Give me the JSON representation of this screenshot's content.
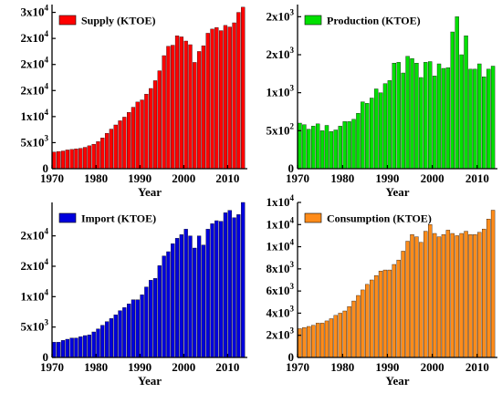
{
  "colors": {
    "supply": "#ff0000",
    "production": "#00e000",
    "import": "#0000dd",
    "consumption": "#ff8c1a"
  },
  "chart_data": [
    {
      "type": "bar",
      "id": "supply",
      "xlabel": "Year",
      "ylabel": "",
      "legend": "Supply (KTOE)",
      "legend_position": "top-left",
      "x": [
        1971,
        1972,
        1973,
        1974,
        1975,
        1976,
        1977,
        1978,
        1979,
        1980,
        1981,
        1982,
        1983,
        1984,
        1985,
        1986,
        1987,
        1988,
        1989,
        1990,
        1991,
        1992,
        1993,
        1994,
        1995,
        1996,
        1997,
        1998,
        1999,
        2000,
        2001,
        2002,
        2003,
        2004,
        2005,
        2006,
        2007,
        2008,
        2009,
        2010,
        2011,
        2012,
        2013,
        2014
      ],
      "values": [
        3200,
        3300,
        3400,
        3600,
        3700,
        3800,
        3900,
        4100,
        4400,
        4700,
        5200,
        5900,
        6800,
        7600,
        8400,
        9200,
        9900,
        10800,
        11800,
        12800,
        13200,
        14300,
        15400,
        16900,
        18800,
        21700,
        23500,
        23700,
        25500,
        25300,
        24500,
        23800,
        20400,
        22500,
        23600,
        26000,
        26800,
        27100,
        26500,
        27500,
        27200,
        28000,
        30000,
        31000
      ],
      "xticks": [
        1970,
        1980,
        1990,
        2000,
        2010
      ],
      "xlim": [
        1970,
        2014.5
      ],
      "ylim": [
        0,
        31500
      ],
      "yticks": [
        {
          "v": 0,
          "mant": "0",
          "exp": ""
        },
        {
          "v": 5000,
          "mant": "5x10",
          "exp": "3"
        },
        {
          "v": 10000,
          "mant": "1x10",
          "exp": "4"
        },
        {
          "v": 15000,
          "mant": "2x10",
          "exp": "4"
        },
        {
          "v": 20000,
          "mant": "2x10",
          "exp": "4"
        },
        {
          "v": 25000,
          "mant": "2x10",
          "exp": "4"
        },
        {
          "v": 30000,
          "mant": "3x10",
          "exp": "4"
        }
      ]
    },
    {
      "type": "bar",
      "id": "production",
      "xlabel": "Year",
      "ylabel": "",
      "legend": "Production (KTOE)",
      "legend_position": "top-left",
      "x": [
        1971,
        1972,
        1973,
        1974,
        1975,
        1976,
        1977,
        1978,
        1979,
        1980,
        1981,
        1982,
        1983,
        1984,
        1985,
        1986,
        1987,
        1988,
        1989,
        1990,
        1991,
        1992,
        1993,
        1994,
        1995,
        1996,
        1997,
        1998,
        1999,
        2000,
        2001,
        2002,
        2003,
        2004,
        2005,
        2006,
        2007,
        2008,
        2009,
        2010,
        2011,
        2012,
        2013,
        2014
      ],
      "values": [
        600,
        580,
        520,
        560,
        590,
        500,
        570,
        490,
        510,
        560,
        620,
        620,
        650,
        730,
        880,
        860,
        930,
        1050,
        1000,
        1120,
        1160,
        1390,
        1400,
        1260,
        1480,
        1450,
        1390,
        1200,
        1400,
        1410,
        1220,
        1380,
        1320,
        1330,
        1800,
        2000,
        1500,
        1750,
        1310,
        1310,
        1380,
        1210,
        1310,
        1350
      ],
      "xticks": [
        1970,
        1980,
        1990,
        2000,
        2010
      ],
      "xlim": [
        1970,
        2014.5
      ],
      "ylim": [
        0,
        2160
      ],
      "yticks": [
        {
          "v": 0,
          "mant": "0",
          "exp": ""
        },
        {
          "v": 500,
          "mant": "5x10",
          "exp": "2"
        },
        {
          "v": 1000,
          "mant": "1x10",
          "exp": "3"
        },
        {
          "v": 1500,
          "mant": "2x10",
          "exp": "3"
        },
        {
          "v": 2000,
          "mant": "2x10",
          "exp": "3"
        }
      ]
    },
    {
      "type": "bar",
      "id": "import",
      "xlabel": "Year",
      "ylabel": "",
      "legend": "Import (KTOE)",
      "legend_position": "top-left",
      "x": [
        1971,
        1972,
        1973,
        1974,
        1975,
        1976,
        1977,
        1978,
        1979,
        1980,
        1981,
        1982,
        1983,
        1984,
        1985,
        1986,
        1987,
        1988,
        1989,
        1990,
        1991,
        1992,
        1993,
        1994,
        1995,
        1996,
        1997,
        1998,
        1999,
        2000,
        2001,
        2002,
        2003,
        2004,
        2005,
        2006,
        2007,
        2008,
        2009,
        2010,
        2011,
        2012,
        2013,
        2014
      ],
      "values": [
        2500,
        2500,
        2800,
        3000,
        3200,
        3200,
        3400,
        3600,
        3700,
        4200,
        4700,
        5300,
        5900,
        6400,
        7000,
        7700,
        8200,
        8800,
        9500,
        9500,
        10300,
        11600,
        12700,
        13000,
        15100,
        16700,
        17400,
        18700,
        19600,
        20200,
        21100,
        20000,
        18000,
        20000,
        18500,
        21100,
        22000,
        22500,
        22400,
        23800,
        24200,
        23000,
        23500,
        25500
      ],
      "xticks": [
        1970,
        1980,
        1990,
        2000,
        2010
      ],
      "xlim": [
        1970,
        2014.5
      ],
      "ylim": [
        0,
        25500
      ],
      "yticks": [
        {
          "v": 0,
          "mant": "0",
          "exp": ""
        },
        {
          "v": 5000,
          "mant": "5x10",
          "exp": "3"
        },
        {
          "v": 10000,
          "mant": "1x10",
          "exp": "4"
        },
        {
          "v": 15000,
          "mant": "2x10",
          "exp": "4"
        },
        {
          "v": 20000,
          "mant": "2x10",
          "exp": "4"
        }
      ]
    },
    {
      "type": "bar",
      "id": "consumption",
      "xlabel": "Year",
      "ylabel": "",
      "legend": "Consumption (KTOE)",
      "legend_position": "top-left",
      "x": [
        1971,
        1972,
        1973,
        1974,
        1975,
        1976,
        1977,
        1978,
        1979,
        1980,
        1981,
        1982,
        1983,
        1984,
        1985,
        1986,
        1987,
        1988,
        1989,
        1990,
        1991,
        1992,
        1993,
        1994,
        1995,
        1996,
        1997,
        1998,
        1999,
        2000,
        2001,
        2002,
        2003,
        2004,
        2005,
        2006,
        2007,
        2008,
        2009,
        2010,
        2011,
        2012,
        2013,
        2014
      ],
      "values": [
        2600,
        2700,
        2800,
        2900,
        3100,
        3100,
        3300,
        3500,
        3800,
        4000,
        4200,
        4600,
        5100,
        5600,
        6100,
        6600,
        7000,
        7400,
        7800,
        7900,
        7900,
        8400,
        8800,
        9600,
        10500,
        11100,
        10900,
        10400,
        11400,
        12000,
        11200,
        10900,
        11100,
        11500,
        11200,
        11000,
        11200,
        11400,
        11100,
        11100,
        11300,
        11600,
        12500,
        13300
      ],
      "xticks": [
        1970,
        1980,
        1990,
        2000,
        2010
      ],
      "xlim": [
        1970,
        2014.5
      ],
      "ylim": [
        0,
        14000
      ],
      "yticks": [
        {
          "v": 0,
          "mant": "0",
          "exp": ""
        },
        {
          "v": 2000,
          "mant": "2x10",
          "exp": "3"
        },
        {
          "v": 4000,
          "mant": "4x10",
          "exp": "3"
        },
        {
          "v": 6000,
          "mant": "6x10",
          "exp": "3"
        },
        {
          "v": 8000,
          "mant": "8x10",
          "exp": "3"
        },
        {
          "v": 10000,
          "mant": "1x10",
          "exp": "4"
        },
        {
          "v": 12000,
          "mant": "1x10",
          "exp": "4"
        },
        {
          "v": 14000,
          "mant": "1x10",
          "exp": "4"
        }
      ]
    }
  ]
}
